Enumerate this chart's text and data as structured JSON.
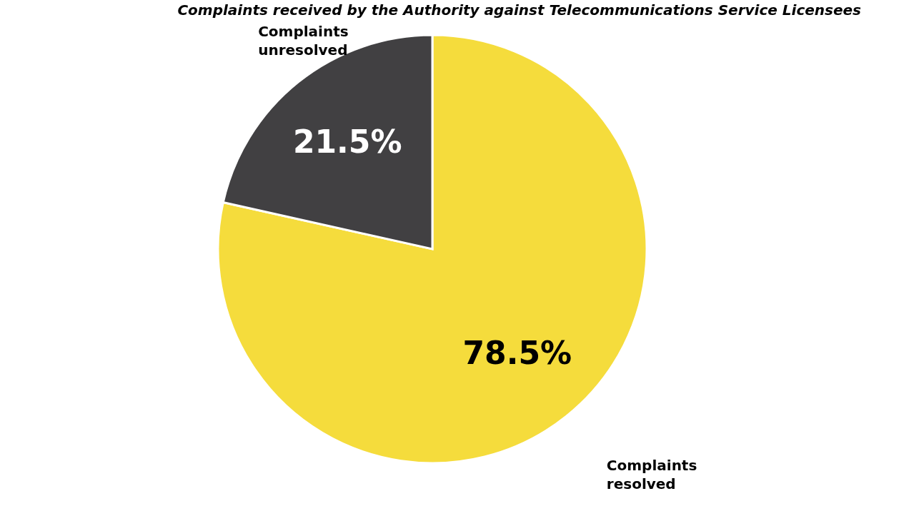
{
  "chart_data": {
    "type": "pie",
    "title": "Complaints received by the Authority against Telecommunications Service Licensees",
    "categories": [
      "Complaints resolved",
      "Complaints unresolved"
    ],
    "values": [
      78.5,
      21.5
    ],
    "colors": [
      "#f5dc3c",
      "#414042"
    ],
    "value_labels": [
      "78.5%",
      "21.5%"
    ],
    "legend": false
  }
}
